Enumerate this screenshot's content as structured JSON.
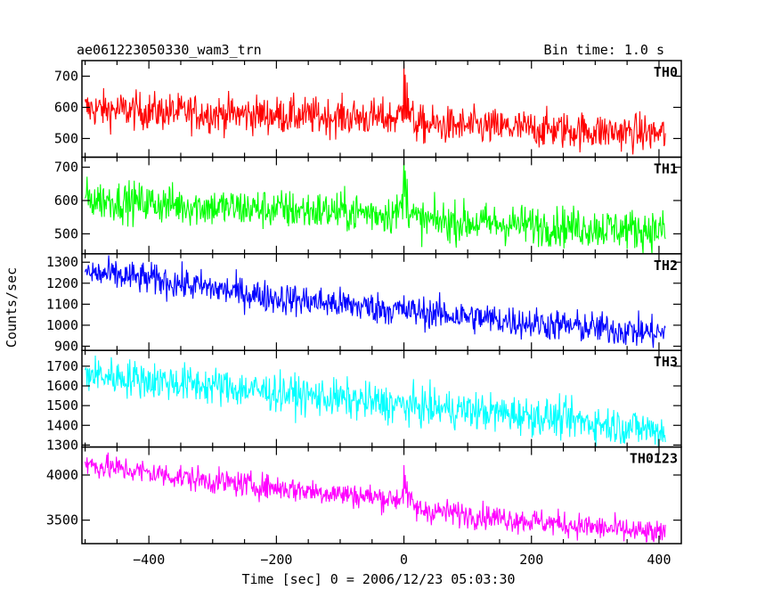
{
  "chart_data": {
    "type": "line",
    "title": "ae061223050330_wam3_trn",
    "subtitle": "Bin time: 1.0 s",
    "xlabel": "Time [sec] 0 = 2006/12/23 05:03:30",
    "ylabel": "Counts/sec",
    "xlim": [
      -505,
      435
    ],
    "xticks": [
      -400,
      -200,
      0,
      200,
      400
    ],
    "x_tick_labels": [
      "−400",
      "−200",
      "0",
      "200",
      "400"
    ],
    "x_data_range": [
      -500,
      410
    ],
    "panels": [
      {
        "name": "TH0",
        "color": "#ff0000",
        "ylim": [
          440,
          750
        ],
        "yticks": [
          500,
          600,
          700
        ],
        "y_tick_labels": [
          "500",
          "600",
          "700"
        ],
        "trend": [
          [
            -500,
            595
          ],
          [
            -300,
            580
          ],
          [
            -10,
            565
          ],
          [
            0,
            600
          ],
          [
            20,
            545
          ],
          [
            410,
            515
          ]
        ],
        "noise": 30,
        "spikes": [
          [
            0,
            740
          ],
          [
            2,
            705
          ],
          [
            5,
            680
          ]
        ]
      },
      {
        "name": "TH1",
        "color": "#00ff00",
        "ylim": [
          440,
          730
        ],
        "yticks": [
          500,
          600,
          700
        ],
        "y_tick_labels": [
          "500",
          "600",
          "700"
        ],
        "trend": [
          [
            -500,
            605
          ],
          [
            -300,
            580
          ],
          [
            -10,
            560
          ],
          [
            0,
            600
          ],
          [
            20,
            540
          ],
          [
            410,
            510
          ]
        ],
        "noise": 30,
        "spikes": [
          [
            0,
            722
          ],
          [
            2,
            690
          ],
          [
            5,
            665
          ]
        ]
      },
      {
        "name": "TH2",
        "color": "#0000ff",
        "ylim": [
          880,
          1340
        ],
        "yticks": [
          900,
          1000,
          1100,
          1200,
          1300
        ],
        "y_tick_labels": [
          "900",
          "1000",
          "1100",
          "1200",
          "1300"
        ],
        "trend": [
          [
            -500,
            1250
          ],
          [
            -400,
            1220
          ],
          [
            -200,
            1130
          ],
          [
            0,
            1070
          ],
          [
            200,
            1010
          ],
          [
            410,
            960
          ]
        ],
        "noise": 38,
        "spikes": []
      },
      {
        "name": "TH3",
        "color": "#00ffff",
        "ylim": [
          1290,
          1780
        ],
        "yticks": [
          1300,
          1400,
          1500,
          1600,
          1700
        ],
        "y_tick_labels": [
          "1300",
          "1400",
          "1500",
          "1600",
          "1700"
        ],
        "trend": [
          [
            -500,
            1660
          ],
          [
            -300,
            1600
          ],
          [
            0,
            1500
          ],
          [
            200,
            1450
          ],
          [
            410,
            1370
          ]
        ],
        "noise": 48,
        "spikes": []
      },
      {
        "name": "TH0123",
        "color": "#ff00ff",
        "ylim": [
          3240,
          4310
        ],
        "yticks": [
          3500,
          4000
        ],
        "y_tick_labels": [
          "3500",
          "4000"
        ],
        "trend": [
          [
            -500,
            4120
          ],
          [
            -300,
            3930
          ],
          [
            -10,
            3730
          ],
          [
            0,
            3800
          ],
          [
            20,
            3620
          ],
          [
            410,
            3340
          ]
        ],
        "noise": 70,
        "spikes": [
          [
            0,
            4110
          ],
          [
            2,
            4000
          ],
          [
            5,
            3930
          ]
        ]
      }
    ]
  }
}
